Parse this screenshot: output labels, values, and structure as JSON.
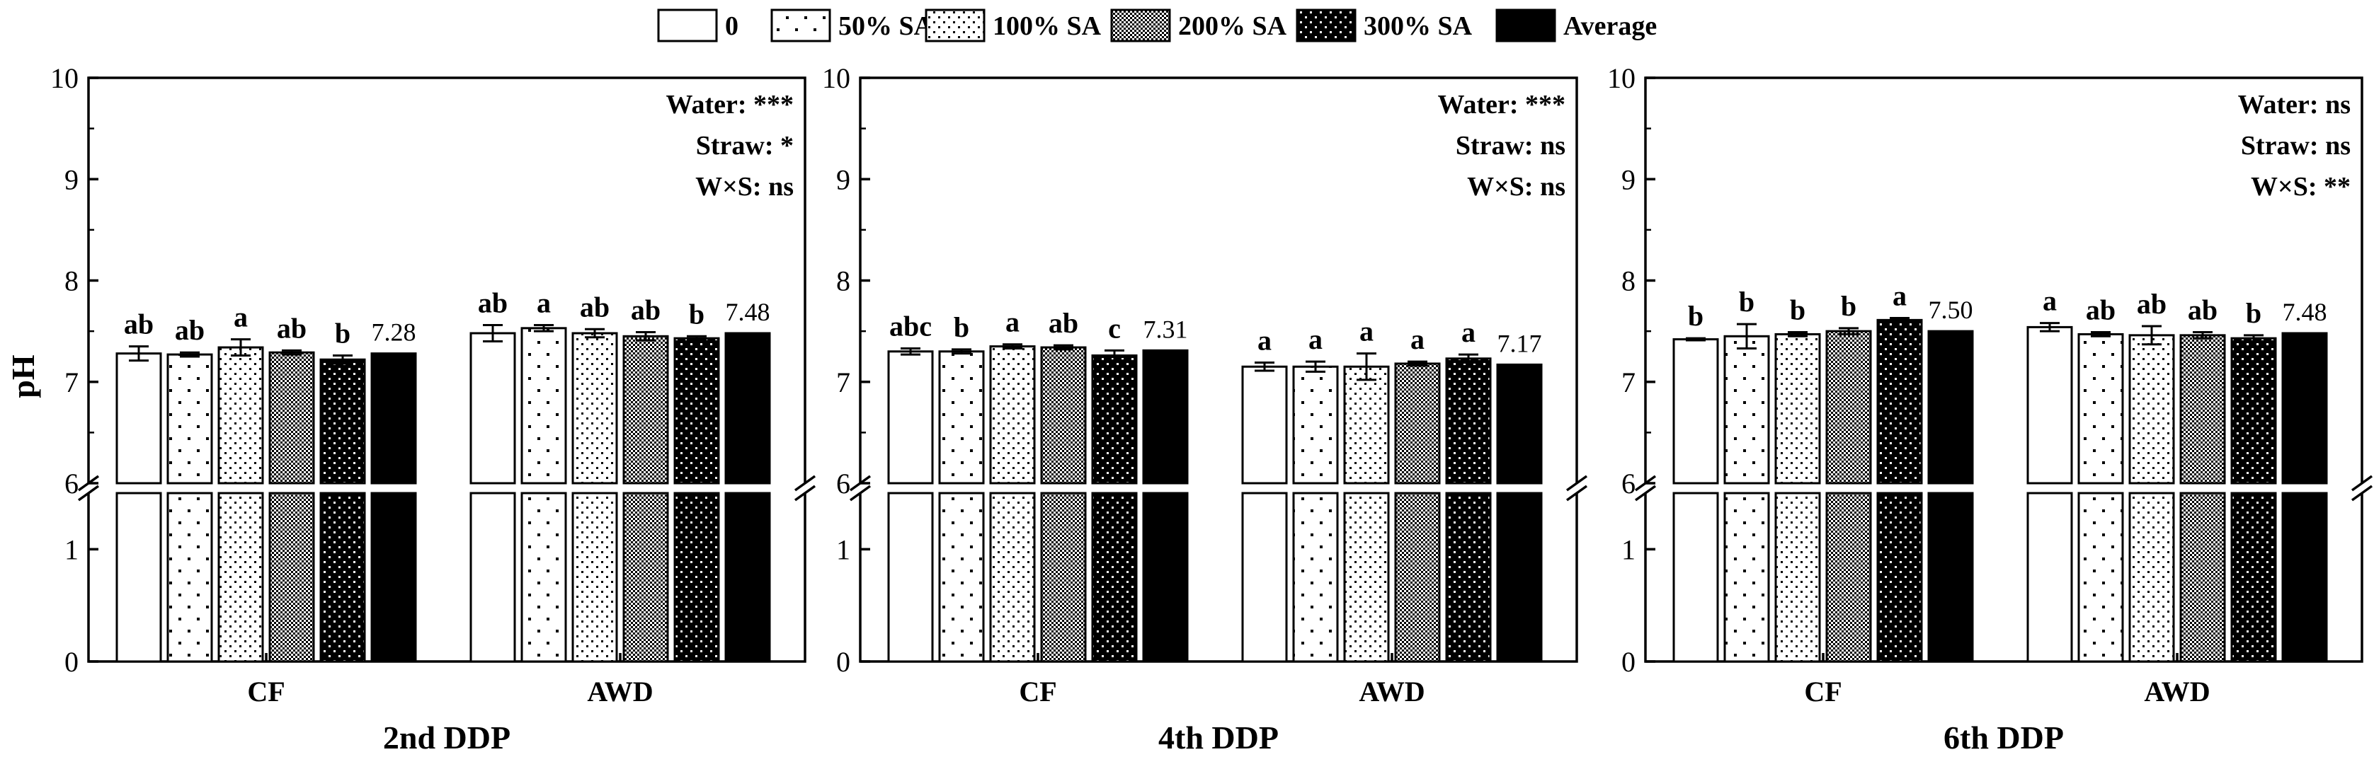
{
  "legend": [
    {
      "label": "0",
      "pattern": "white"
    },
    {
      "label": "50% SA",
      "pattern": "sparse"
    },
    {
      "label": "100% SA",
      "pattern": "medium"
    },
    {
      "label": "200% SA",
      "pattern": "crosshatch"
    },
    {
      "label": "300% SA",
      "pattern": "dense"
    },
    {
      "label": "Average",
      "pattern": "black"
    }
  ],
  "colors": {
    "ink": "#000000",
    "background": "#ffffff"
  },
  "chart_data": [
    {
      "type": "bar",
      "title": "2nd DDP",
      "ylabel": "pH",
      "categories": [
        "CF",
        "AWD"
      ],
      "ylim_lower": [
        0,
        1.5
      ],
      "ylim_upper": [
        6,
        10
      ],
      "lower_ticks": [
        "0",
        "1"
      ],
      "upper_ticks": [
        "6",
        "7",
        "8",
        "9",
        "10"
      ],
      "lower_tick_values": [
        0,
        1
      ],
      "upper_tick_values": [
        6,
        7,
        8,
        9,
        10
      ],
      "annotations": [
        "Water: ***",
        "Straw: *",
        "W×S: ns"
      ],
      "series": [
        {
          "name": "0",
          "values": [
            7.28,
            7.48
          ],
          "errors": [
            0.07,
            0.08
          ],
          "letters": [
            "ab",
            "ab"
          ]
        },
        {
          "name": "50% SA",
          "values": [
            7.27,
            7.53
          ],
          "errors": [
            0.02,
            0.03
          ],
          "letters": [
            "ab",
            "a"
          ]
        },
        {
          "name": "100% SA",
          "values": [
            7.34,
            7.48
          ],
          "errors": [
            0.08,
            0.04
          ],
          "letters": [
            "a",
            "ab"
          ]
        },
        {
          "name": "200% SA",
          "values": [
            7.29,
            7.45
          ],
          "errors": [
            0.02,
            0.04
          ],
          "letters": [
            "ab",
            "ab"
          ]
        },
        {
          "name": "300% SA",
          "values": [
            7.22,
            7.43
          ],
          "errors": [
            0.04,
            0.02
          ],
          "letters": [
            "b",
            "b"
          ]
        },
        {
          "name": "Average",
          "values": [
            7.28,
            7.48
          ],
          "errors": [
            0,
            0
          ],
          "letters": [
            "7.28",
            "7.48"
          ]
        }
      ]
    },
    {
      "type": "bar",
      "title": "4th DDP",
      "ylabel": "",
      "categories": [
        "CF",
        "AWD"
      ],
      "ylim_lower": [
        0,
        1.5
      ],
      "ylim_upper": [
        6,
        10
      ],
      "lower_ticks": [
        "0",
        "1"
      ],
      "upper_ticks": [
        "6",
        "7",
        "8",
        "9",
        "10"
      ],
      "lower_tick_values": [
        0,
        1
      ],
      "upper_tick_values": [
        6,
        7,
        8,
        9,
        10
      ],
      "annotations": [
        "Water: ***",
        "Straw: ns",
        "W×S: ns"
      ],
      "series": [
        {
          "name": "0",
          "values": [
            7.3,
            7.15
          ],
          "errors": [
            0.03,
            0.04
          ],
          "letters": [
            "abc",
            "a"
          ]
        },
        {
          "name": "50% SA",
          "values": [
            7.3,
            7.15
          ],
          "errors": [
            0.02,
            0.05
          ],
          "letters": [
            "b",
            "a"
          ]
        },
        {
          "name": "100% SA",
          "values": [
            7.35,
            7.15
          ],
          "errors": [
            0.02,
            0.13
          ],
          "letters": [
            "a",
            "a"
          ]
        },
        {
          "name": "200% SA",
          "values": [
            7.34,
            7.18
          ],
          "errors": [
            0.02,
            0.02
          ],
          "letters": [
            "ab",
            "a"
          ]
        },
        {
          "name": "300% SA",
          "values": [
            7.26,
            7.23
          ],
          "errors": [
            0.05,
            0.04
          ],
          "letters": [
            "c",
            "a"
          ]
        },
        {
          "name": "Average",
          "values": [
            7.31,
            7.17
          ],
          "errors": [
            0,
            0
          ],
          "letters": [
            "7.31",
            "7.17"
          ]
        }
      ]
    },
    {
      "type": "bar",
      "title": "6th DDP",
      "ylabel": "",
      "categories": [
        "CF",
        "AWD"
      ],
      "ylim_lower": [
        0,
        1.5
      ],
      "ylim_upper": [
        6,
        10
      ],
      "lower_ticks": [
        "0",
        "1"
      ],
      "upper_ticks": [
        "6",
        "7",
        "8",
        "9",
        "10"
      ],
      "lower_tick_values": [
        0,
        1
      ],
      "upper_tick_values": [
        6,
        7,
        8,
        9,
        10
      ],
      "annotations": [
        "Water: ns",
        "Straw: ns",
        "W×S: **"
      ],
      "series": [
        {
          "name": "0",
          "values": [
            7.42,
            7.54
          ],
          "errors": [
            0.01,
            0.04
          ],
          "letters": [
            "b",
            "a"
          ]
        },
        {
          "name": "50% SA",
          "values": [
            7.45,
            7.47
          ],
          "errors": [
            0.12,
            0.02
          ],
          "letters": [
            "b",
            "ab"
          ]
        },
        {
          "name": "100% SA",
          "values": [
            7.47,
            7.46
          ],
          "errors": [
            0.02,
            0.09
          ],
          "letters": [
            "b",
            "ab"
          ]
        },
        {
          "name": "200% SA",
          "values": [
            7.5,
            7.46
          ],
          "errors": [
            0.03,
            0.03
          ],
          "letters": [
            "b",
            "ab"
          ]
        },
        {
          "name": "300% SA",
          "values": [
            7.61,
            7.43
          ],
          "errors": [
            0.02,
            0.03
          ],
          "letters": [
            "a",
            "b"
          ]
        },
        {
          "name": "Average",
          "values": [
            7.5,
            7.48
          ],
          "errors": [
            0,
            0
          ],
          "letters": [
            "7.50",
            "7.48"
          ]
        }
      ]
    }
  ]
}
